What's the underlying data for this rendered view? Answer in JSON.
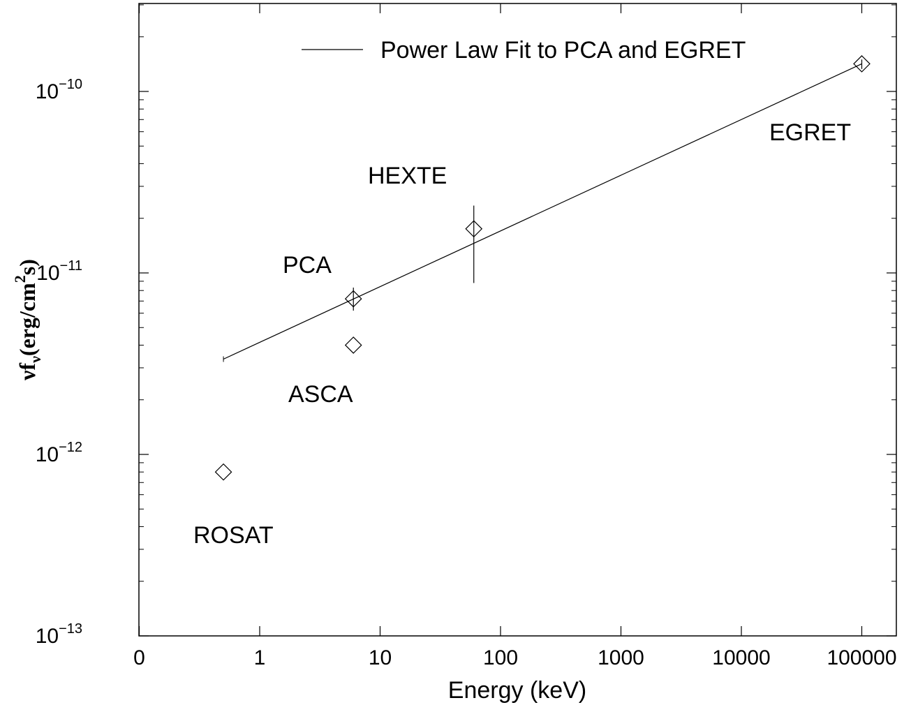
{
  "chart_data": {
    "type": "scatter",
    "xlabel": "Energy (keV)",
    "ylabel": {
      "main": "νf",
      "sub": "ν",
      "rest": "(erg/cm",
      "sup": "2",
      "end": "s)"
    },
    "xscale": "log",
    "yscale": "log",
    "xlim": [
      0.1,
      200000
    ],
    "ylim": [
      1e-13,
      3e-10
    ],
    "xticks": [
      {
        "value": 0.1,
        "label": "0"
      },
      {
        "value": 1,
        "label": "1"
      },
      {
        "value": 10,
        "label": "10"
      },
      {
        "value": 100,
        "label": "100"
      },
      {
        "value": 1000,
        "label": "1000"
      },
      {
        "value": 10000,
        "label": "10000"
      },
      {
        "value": 100000,
        "label": "100000"
      }
    ],
    "yticks": [
      {
        "value": 1e-13,
        "base": "10",
        "exp": "−13"
      },
      {
        "value": 1e-12,
        "base": "10",
        "exp": "−12"
      },
      {
        "value": 1e-11,
        "base": "10",
        "exp": "−11"
      },
      {
        "value": 1e-10,
        "base": "10",
        "exp": "−10"
      }
    ],
    "points": [
      {
        "label": "ROSAT",
        "x": 0.5,
        "y": 8e-13
      },
      {
        "label": "ASCA",
        "x": 6,
        "y": 4e-12
      },
      {
        "label": "PCA",
        "x": 6,
        "y": 7.2e-12,
        "yerr": [
          6.2e-12,
          8.3e-12
        ]
      },
      {
        "label": "HEXTE",
        "x": 60,
        "y": 1.75e-11,
        "yerr": [
          8.8e-12,
          2.35e-11
        ]
      },
      {
        "label": "EGRET",
        "x": 100000,
        "y": 1.42e-10,
        "yerr": [
          1.33e-10,
          1.5e-10
        ]
      }
    ],
    "annotations": [
      "ROSAT",
      "ASCA",
      "PCA",
      "HEXTE",
      "EGRET"
    ],
    "fit": {
      "name": "Power Law Fit to PCA and EGRET",
      "x": [
        0.5,
        100000
      ],
      "y": [
        3.35e-12,
        1.42e-10
      ]
    },
    "legend": "top-right",
    "grid": false
  }
}
